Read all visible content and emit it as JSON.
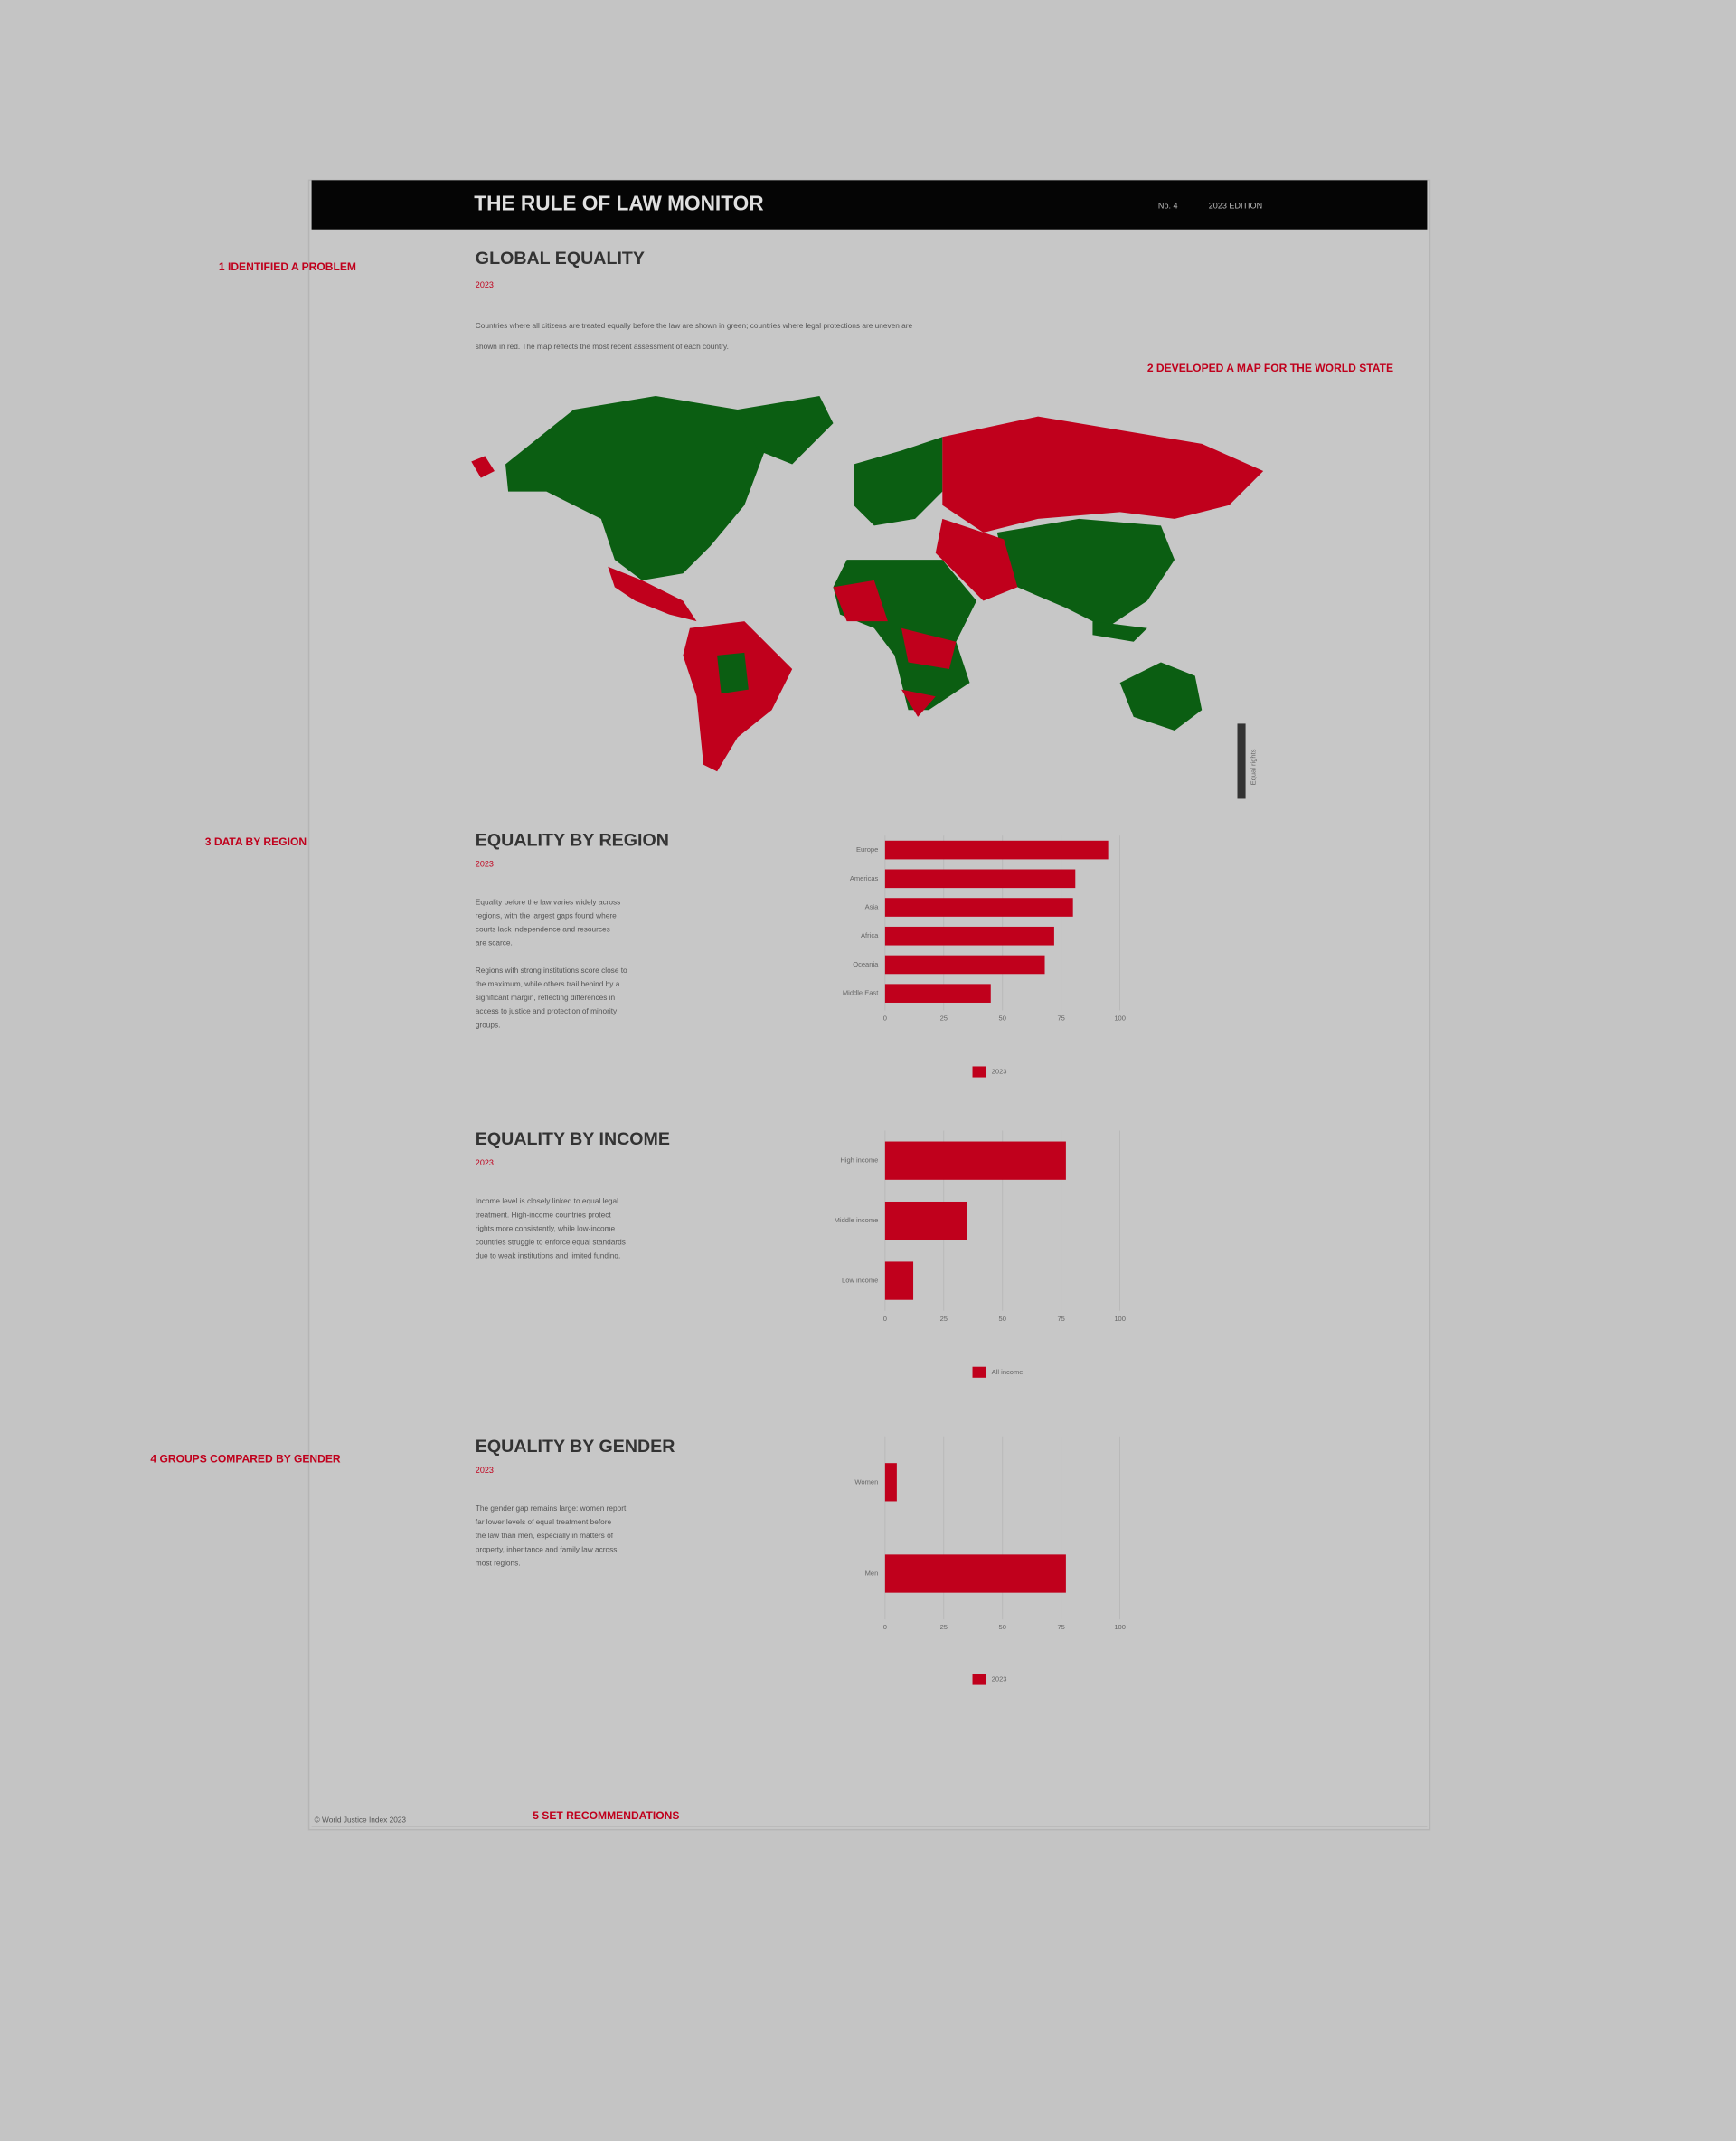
{
  "header": {
    "title": "THE RULE OF LAW MONITOR",
    "issue": "No. 4",
    "edition": "2023 EDITION"
  },
  "annotations": [
    "1  IDENTIFIED A PROBLEM",
    "2  DEVELOPED A MAP FOR THE WORLD STATE",
    "3  DATA BY REGION",
    "4  GROUPS COMPARED BY GENDER",
    "5  SET RECOMMENDATIONS"
  ],
  "map": {
    "title": "GLOBAL EQUALITY",
    "subtitle": "2023",
    "description": [
      "Countries where all citizens are treated equally before the law are shown in green; countries where legal protections are uneven are",
      "shown in red. The map reflects the most recent assessment of each country."
    ],
    "legend_label": "Equal rights"
  },
  "chart_data": [
    {
      "type": "bar",
      "title": "EQUALITY BY REGION",
      "subtitle": "2023",
      "description": [
        "Equality before the law varies widely across",
        "regions, with the largest gaps found where",
        "courts lack independence and resources",
        "are scarce.",
        "",
        "Regions with strong institutions score close to",
        "the maximum, while others trail behind by a",
        "significant margin, reflecting differences in",
        "access to justice and protection of minority",
        "groups."
      ],
      "categories": [
        "Europe",
        "Americas",
        "Asia",
        "Africa",
        "Oceania",
        "Middle East"
      ],
      "series": [
        {
          "name": "2023",
          "color": "#c0001c",
          "values": [
            95,
            81,
            80,
            72,
            68,
            45
          ]
        }
      ],
      "xlim": [
        0,
        100
      ],
      "xticks": [
        0,
        25,
        50,
        75,
        100
      ],
      "grid": true
    },
    {
      "type": "bar",
      "title": "EQUALITY BY INCOME",
      "subtitle": "2023",
      "description": [
        "Income level is closely linked to equal legal",
        "treatment. High-income countries protect",
        "rights more consistently, while low-income",
        "countries struggle to enforce equal standards",
        "due to weak institutions and limited funding."
      ],
      "categories": [
        "High income",
        "Middle income",
        "Low income"
      ],
      "series": [
        {
          "name": "All income",
          "color": "#c0001c",
          "values": [
            77,
            35,
            12
          ]
        }
      ],
      "xlim": [
        0,
        100
      ],
      "xticks": [
        0,
        25,
        50,
        75,
        100
      ],
      "grid": true
    },
    {
      "type": "bar",
      "title": "EQUALITY BY GENDER",
      "subtitle": "2023",
      "description": [
        "The gender gap remains large: women report",
        "far lower levels of equal treatment before",
        "the law than men, especially in matters of",
        "property, inheritance and family law across",
        "most regions."
      ],
      "categories": [
        "Women",
        "Men"
      ],
      "series": [
        {
          "name": "2023",
          "color": "#c0001c",
          "values": [
            5,
            77
          ]
        }
      ],
      "xlim": [
        0,
        100
      ],
      "xticks": [
        0,
        25,
        50,
        75,
        100
      ],
      "grid": true
    }
  ],
  "footer": "© World Justice Index 2023"
}
